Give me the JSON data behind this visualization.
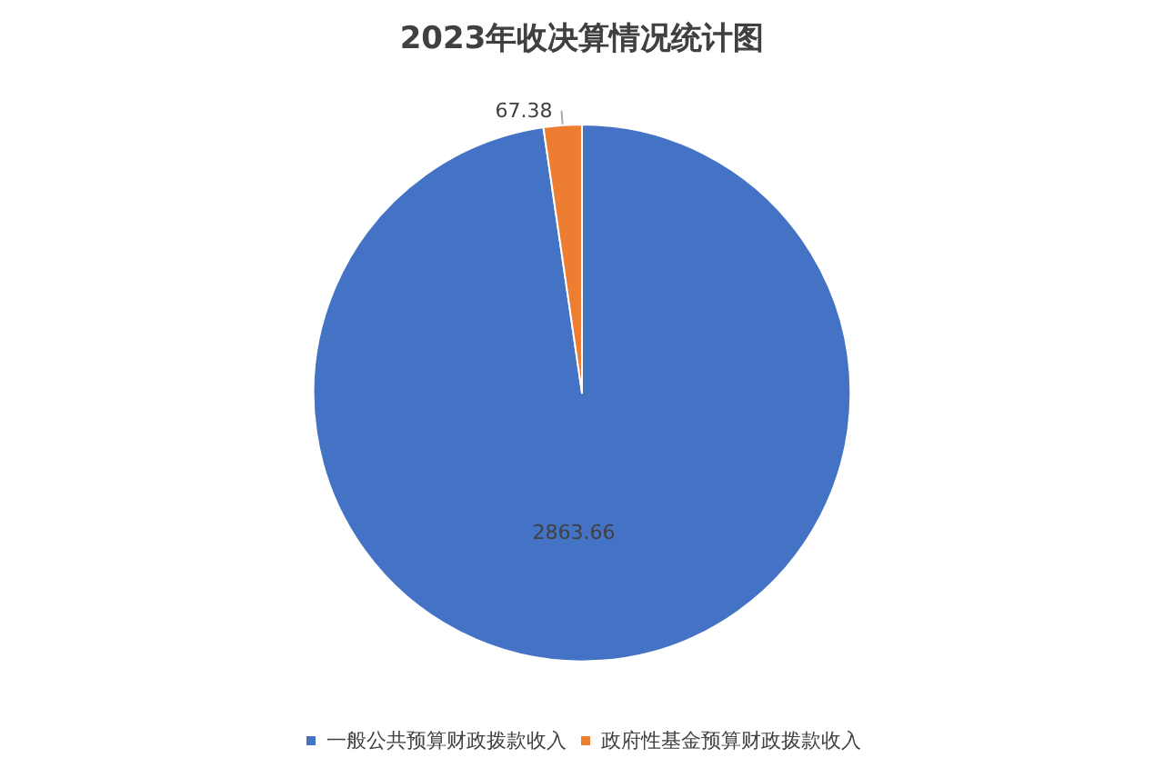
{
  "chart_data": {
    "type": "pie",
    "title": "2023年收决算情况统计图",
    "categories": [
      "一般公共预算财政拨款收入",
      "政府性基金预算财政拨款收入"
    ],
    "values": [
      2863.66,
      67.38
    ],
    "colors": [
      "#4472c4",
      "#ed7d31"
    ],
    "data_labels": true,
    "legend": "bottom"
  }
}
